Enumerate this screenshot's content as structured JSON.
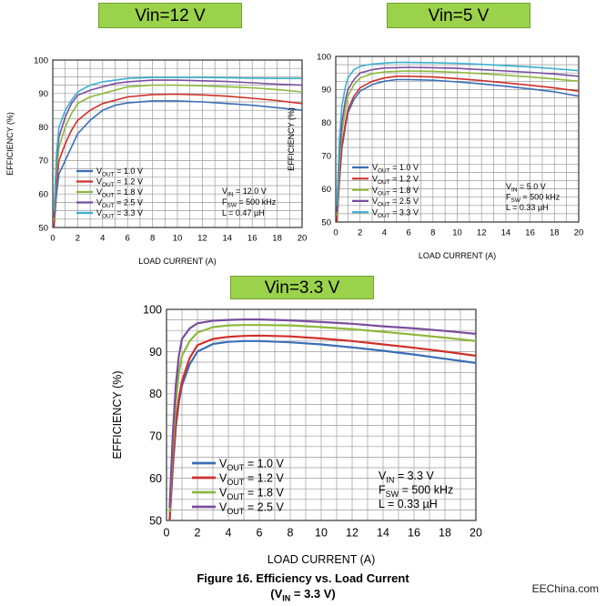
{
  "banners": [
    "Vin=12 V",
    "Vin=5 V",
    "Vin=3.3 V"
  ],
  "caption": {
    "line1": "Figure 16. Efficiency vs. Load Current",
    "line2_main": "(V",
    "line2_sub": "IN",
    "line2_rest": " = 3.3 V)"
  },
  "watermark": "EEChina.com",
  "colors": {
    "vout_1_0": "#3A6EB5",
    "vout_1_2": "#D0302B",
    "vout_1_8": "#8DB83C",
    "vout_2_5": "#7A4D9E",
    "vout_3_3": "#3BB0CF"
  },
  "chart_data": [
    {
      "type": "line",
      "xlabel": "LOAD CURRENT (A)",
      "ylabel": "EFFICIENCY (%)",
      "xlim": [
        0,
        20
      ],
      "ylim": [
        50,
        100
      ],
      "xticks": [
        0,
        2,
        4,
        6,
        8,
        10,
        12,
        14,
        16,
        18,
        20
      ],
      "yticks": [
        50,
        60,
        70,
        80,
        90,
        100
      ],
      "grid": true,
      "legend_position": "bottom-left",
      "annotation": [
        "V|IN| = 12.0 V",
        "F|SW| = 500 kHz",
        "L = 0.47 µH"
      ],
      "series": [
        {
          "name": "V|OUT| = 1.0 V",
          "x": [
            0.1,
            0.3,
            0.5,
            1,
            1.5,
            2,
            3,
            4,
            5,
            6,
            8,
            10,
            12,
            14,
            16,
            18,
            20
          ],
          "y": [
            50,
            60,
            66,
            70,
            74,
            78,
            82,
            85,
            86.5,
            87.2,
            87.8,
            87.8,
            87.5,
            87,
            86.5,
            85.8,
            85
          ]
        },
        {
          "name": "V|OUT| = 1.2 V",
          "x": [
            0.1,
            0.3,
            0.5,
            1,
            1.5,
            2,
            3,
            4,
            5,
            6,
            8,
            10,
            12,
            14,
            16,
            18,
            20
          ],
          "y": [
            50,
            63,
            70,
            75,
            79,
            82,
            85,
            87,
            88,
            89,
            89.7,
            89.8,
            89.6,
            89.2,
            88.6,
            87.9,
            87
          ]
        },
        {
          "name": "V|OUT| = 1.8 V",
          "x": [
            0.1,
            0.3,
            0.5,
            1,
            1.5,
            2,
            3,
            4,
            5,
            6,
            8,
            10,
            12,
            14,
            16,
            18,
            20
          ],
          "y": [
            52,
            67,
            74,
            80,
            84,
            87,
            89,
            90,
            91,
            92,
            92.5,
            92.5,
            92.3,
            92,
            91.7,
            91.2,
            90.5
          ]
        },
        {
          "name": "V|OUT| = 2.5 V",
          "x": [
            0.1,
            0.3,
            0.5,
            1,
            1.5,
            2,
            3,
            4,
            5,
            6,
            8,
            10,
            12,
            14,
            16,
            18,
            20
          ],
          "y": [
            53,
            70,
            77,
            83,
            87,
            89.5,
            91,
            92,
            93,
            93.5,
            94,
            94,
            93.8,
            93.6,
            93.2,
            92.8,
            92.5
          ]
        },
        {
          "name": "V|OUT| = 3.3 V",
          "x": [
            0.1,
            0.3,
            0.5,
            1,
            1.5,
            2,
            3,
            4,
            5,
            6,
            8,
            10,
            12,
            14,
            16,
            18,
            20
          ],
          "y": [
            55,
            72,
            80,
            85,
            88,
            90.5,
            92.5,
            93.5,
            94,
            94.5,
            94.8,
            94.8,
            94.8,
            94.7,
            94.6,
            94.5,
            94.5
          ]
        }
      ]
    },
    {
      "type": "line",
      "xlabel": "LOAD CURRENT (A)",
      "ylabel": "EFFICIENCY (%)",
      "xlim": [
        0,
        20
      ],
      "ylim": [
        50,
        100
      ],
      "xticks": [
        0,
        2,
        4,
        6,
        8,
        10,
        12,
        14,
        16,
        18,
        20
      ],
      "yticks": [
        50,
        60,
        70,
        80,
        90,
        100
      ],
      "grid": true,
      "legend_position": "bottom-left",
      "annotation": [
        "V|IN| = 5.0 V",
        "F|SW| = 500 kHz",
        "L = 0.33 µH"
      ],
      "series": [
        {
          "name": "V|OUT| = 1.0 V",
          "x": [
            0.1,
            0.3,
            0.5,
            0.8,
            1,
            1.5,
            2,
            3,
            4,
            5,
            6,
            8,
            10,
            12,
            14,
            16,
            18,
            20
          ],
          "y": [
            50,
            62,
            72,
            79,
            83,
            87,
            89.5,
            91.5,
            92.5,
            93,
            93,
            92.8,
            92.3,
            91.7,
            91,
            90.2,
            89.3,
            88
          ]
        },
        {
          "name": "V|OUT| = 1.2 V",
          "x": [
            0.1,
            0.3,
            0.5,
            0.8,
            1,
            1.5,
            2,
            3,
            4,
            5,
            6,
            8,
            10,
            12,
            14,
            16,
            18,
            20
          ],
          "y": [
            50,
            63,
            73,
            80,
            84,
            88,
            90.5,
            92.5,
            93.5,
            94,
            94,
            93.8,
            93.3,
            92.7,
            92,
            91.3,
            90.5,
            89.5
          ]
        },
        {
          "name": "V|OUT| = 1.8 V",
          "x": [
            0.1,
            0.3,
            0.5,
            0.8,
            1,
            1.5,
            2,
            3,
            4,
            5,
            6,
            8,
            10,
            12,
            14,
            16,
            18,
            20
          ],
          "y": [
            52,
            67,
            77,
            84,
            88,
            91.5,
            93.5,
            94.8,
            95.3,
            95.5,
            95.6,
            95.5,
            95.2,
            94.8,
            94.3,
            93.8,
            93.2,
            92.5
          ]
        },
        {
          "name": "V|OUT| = 2.5 V",
          "x": [
            0.1,
            0.3,
            0.5,
            0.8,
            1,
            1.5,
            2,
            3,
            4,
            5,
            6,
            8,
            10,
            12,
            14,
            16,
            18,
            20
          ],
          "y": [
            53,
            70,
            80,
            87,
            90,
            93,
            95,
            96,
            96.5,
            96.6,
            96.7,
            96.6,
            96.4,
            96,
            95.6,
            95.2,
            94.7,
            94
          ]
        },
        {
          "name": "V|OUT| = 3.3 V",
          "x": [
            0.1,
            0.3,
            0.5,
            0.8,
            1,
            1.5,
            2,
            3,
            4,
            5,
            6,
            8,
            10,
            12,
            14,
            16,
            18,
            20
          ],
          "y": [
            55,
            75,
            85,
            91,
            93.5,
            96,
            97,
            97.7,
            98,
            98.2,
            98.2,
            98.1,
            97.9,
            97.6,
            97.2,
            96.8,
            96.3,
            95.7
          ]
        }
      ]
    },
    {
      "type": "line",
      "xlabel": "LOAD CURRENT (A)",
      "ylabel": "EFFICIENCY (%)",
      "xlim": [
        0,
        20
      ],
      "ylim": [
        50,
        100
      ],
      "xticks": [
        0,
        2,
        4,
        6,
        8,
        10,
        12,
        14,
        16,
        18,
        20
      ],
      "yticks": [
        50,
        60,
        70,
        80,
        90,
        100
      ],
      "grid": true,
      "legend_position": "bottom-left",
      "annotation": [
        "V|IN| = 3.3 V",
        "F|SW| = 500 kHz",
        "L = 0.33 µH"
      ],
      "series": [
        {
          "name": "V|OUT| = 1.0 V",
          "x": [
            0.2,
            0.4,
            0.6,
            0.8,
            1,
            1.5,
            2,
            3,
            4,
            5,
            6,
            8,
            10,
            12,
            14,
            16,
            18,
            20
          ],
          "y": [
            50,
            62,
            72,
            78,
            82,
            87,
            90,
            91.8,
            92.3,
            92.5,
            92.5,
            92.2,
            91.7,
            91,
            90.2,
            89.3,
            88.3,
            87.3
          ]
        },
        {
          "name": "V|OUT| = 1.2 V",
          "x": [
            0.2,
            0.4,
            0.6,
            0.8,
            1,
            1.5,
            2,
            3,
            4,
            5,
            6,
            8,
            10,
            12,
            14,
            16,
            18,
            20
          ],
          "y": [
            50,
            63,
            73,
            79,
            83,
            88.5,
            91.5,
            93,
            93.5,
            93.7,
            93.8,
            93.6,
            93.1,
            92.5,
            91.7,
            90.9,
            90,
            89
          ]
        },
        {
          "name": "V|OUT| = 1.8 V",
          "x": [
            0.2,
            0.4,
            0.6,
            0.8,
            1,
            1.5,
            2,
            3,
            4,
            5,
            6,
            8,
            10,
            12,
            14,
            16,
            18,
            20
          ],
          "y": [
            52,
            67,
            78,
            85,
            89,
            92.5,
            94.5,
            95.8,
            96.2,
            96.3,
            96.3,
            96.2,
            95.8,
            95.3,
            94.7,
            94,
            93.3,
            92.5
          ]
        },
        {
          "name": "V|OUT| = 2.5 V",
          "x": [
            0.2,
            0.4,
            0.6,
            0.8,
            1,
            1.5,
            2,
            3,
            4,
            5,
            6,
            8,
            10,
            12,
            14,
            16,
            18,
            20
          ],
          "y": [
            53,
            70,
            82,
            89,
            93,
            95.5,
            96.7,
            97.3,
            97.5,
            97.6,
            97.6,
            97.4,
            97,
            96.6,
            96,
            95.5,
            94.9,
            94.2
          ]
        }
      ]
    }
  ]
}
